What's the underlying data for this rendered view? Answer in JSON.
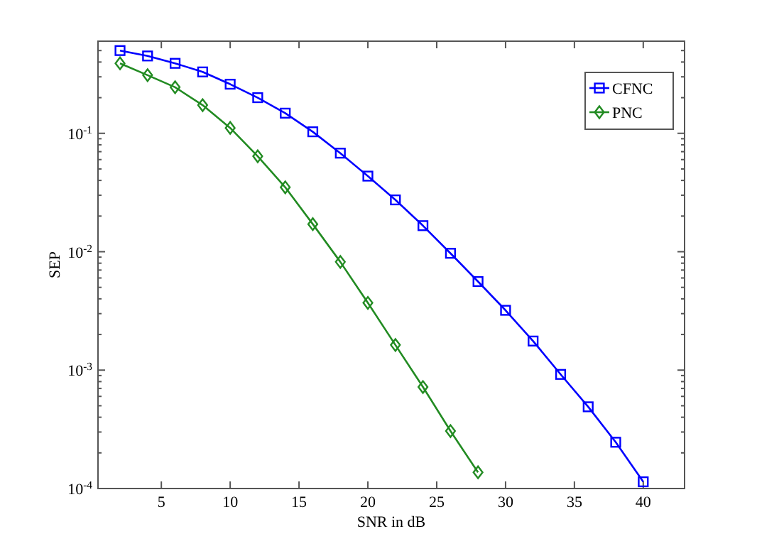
{
  "chart_data": {
    "type": "line",
    "xlabel": "SNR in dB",
    "ylabel": "SEP",
    "log": "y",
    "grid": false,
    "legend": "top right",
    "line_style": "solid",
    "xlim": [
      0.4,
      43
    ],
    "xticks": [
      5,
      10,
      15,
      20,
      25,
      30,
      35,
      40
    ],
    "ylim": [
      0.0001,
      0.6
    ],
    "yticks": [
      {
        "value": 0.0001,
        "label": "10$^{-4}$"
      },
      {
        "value": 0.0002,
        "label": null
      },
      {
        "value": 0.0003,
        "label": null
      },
      {
        "value": 0.0004,
        "label": null
      },
      {
        "value": 0.0005,
        "label": null
      },
      {
        "value": 0.0006,
        "label": null
      },
      {
        "value": 0.0007,
        "label": null
      },
      {
        "value": 0.0008,
        "label": null
      },
      {
        "value": 0.0009,
        "label": null
      },
      {
        "value": 0.001,
        "label": "10$^{-3}$"
      },
      {
        "value": 0.002,
        "label": null
      },
      {
        "value": 0.003,
        "label": null
      },
      {
        "value": 0.004,
        "label": null
      },
      {
        "value": 0.005,
        "label": null
      },
      {
        "value": 0.006,
        "label": null
      },
      {
        "value": 0.007,
        "label": null
      },
      {
        "value": 0.008,
        "label": null
      },
      {
        "value": 0.009,
        "label": null
      },
      {
        "value": 0.01,
        "label": "10$^{-2}$"
      },
      {
        "value": 0.02,
        "label": null
      },
      {
        "value": 0.03,
        "label": null
      },
      {
        "value": 0.04,
        "label": null
      },
      {
        "value": 0.05,
        "label": null
      },
      {
        "value": 0.06,
        "label": null
      },
      {
        "value": 0.07,
        "label": null
      },
      {
        "value": 0.08,
        "label": null
      },
      {
        "value": 0.09,
        "label": null
      },
      {
        "value": 0.1,
        "label": "10$^{-1}$"
      },
      {
        "value": 0.2,
        "label": null
      },
      {
        "value": 0.3,
        "label": null
      },
      {
        "value": 0.4,
        "label": null
      },
      {
        "value": 0.5,
        "label": null
      }
    ],
    "series": [
      {
        "name": "CFNC",
        "color": "#0000ff",
        "marker": "square",
        "x": [
          2,
          4,
          6,
          8,
          10,
          12,
          14,
          16,
          18,
          20,
          22,
          24,
          26,
          28,
          30,
          32,
          34,
          36,
          38,
          40
        ],
        "values": [
          0.5,
          0.45,
          0.39,
          0.33,
          0.26,
          0.2,
          0.148,
          0.103,
          0.068,
          0.0435,
          0.0274,
          0.0166,
          0.0097,
          0.0056,
          0.0032,
          0.00176,
          0.00092,
          0.00049,
          0.000246,
          0.000114
        ]
      },
      {
        "name": "PNC",
        "color": "#228b22",
        "marker": "diamond",
        "x": [
          2,
          4,
          6,
          8,
          10,
          12,
          14,
          16,
          18,
          20,
          22,
          24,
          26,
          28
        ],
        "values": [
          0.39,
          0.31,
          0.245,
          0.173,
          0.111,
          0.064,
          0.035,
          0.0171,
          0.0082,
          0.0037,
          0.00163,
          0.00072,
          0.000306,
          0.000137
        ]
      }
    ]
  }
}
